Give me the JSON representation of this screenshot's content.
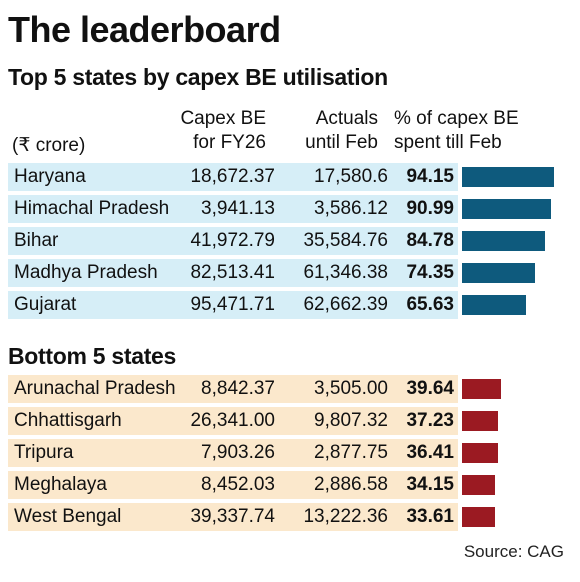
{
  "title": "The leaderboard",
  "subtitle": "Top 5 states by capex BE utilisation",
  "columns": {
    "unit": "(₹ crore)",
    "be_line1": "Capex BE",
    "be_line2": "for FY26",
    "act_line1": "Actuals",
    "act_line2": "until Feb",
    "pct_line1": "% of capex BE",
    "pct_line2": "spent till Feb"
  },
  "bottom_heading": "Bottom 5 states",
  "source": "Source: CAG",
  "colors": {
    "top_bar": "#0e5a7d",
    "bottom_bar": "#9b1a22",
    "top_row_bg": "#d6eef7",
    "bottom_row_bg": "#fbe8cc"
  },
  "chart_data": {
    "type": "table",
    "title": "The leaderboard",
    "series": [
      {
        "name": "Top 5 states by capex BE utilisation",
        "rows": [
          {
            "state": "Haryana",
            "capex_be": "18,672.37",
            "actuals": "17,580.6",
            "pct": "94.15",
            "value": 94.15
          },
          {
            "state": "Himachal Pradesh",
            "capex_be": "3,941.13",
            "actuals": "3,586.12",
            "pct": "90.99",
            "value": 90.99
          },
          {
            "state": "Bihar",
            "capex_be": "41,972.79",
            "actuals": "35,584.76",
            "pct": "84.78",
            "value": 84.78
          },
          {
            "state": "Madhya Pradesh",
            "capex_be": "82,513.41",
            "actuals": "61,346.38",
            "pct": "74.35",
            "value": 74.35
          },
          {
            "state": "Gujarat",
            "capex_be": "95,471.71",
            "actuals": "62,662.39",
            "pct": "65.63",
            "value": 65.63
          }
        ]
      },
      {
        "name": "Bottom 5 states",
        "rows": [
          {
            "state": "Arunachal Pradesh",
            "capex_be": "8,842.37",
            "actuals": "3,505.00",
            "pct": "39.64",
            "value": 39.64
          },
          {
            "state": "Chhattisgarh",
            "capex_be": "26,341.00",
            "actuals": "9,807.32",
            "pct": "37.23",
            "value": 37.23
          },
          {
            "state": "Tripura",
            "capex_be": "7,903.26",
            "actuals": "2,877.75",
            "pct": "36.41",
            "value": 36.41
          },
          {
            "state": "Meghalaya",
            "capex_be": "8,452.03",
            "actuals": "2,886.58",
            "pct": "34.15",
            "value": 34.15
          },
          {
            "state": "West Bengal",
            "capex_be": "39,337.74",
            "actuals": "13,222.36",
            "pct": "33.61",
            "value": 33.61
          }
        ]
      }
    ]
  }
}
